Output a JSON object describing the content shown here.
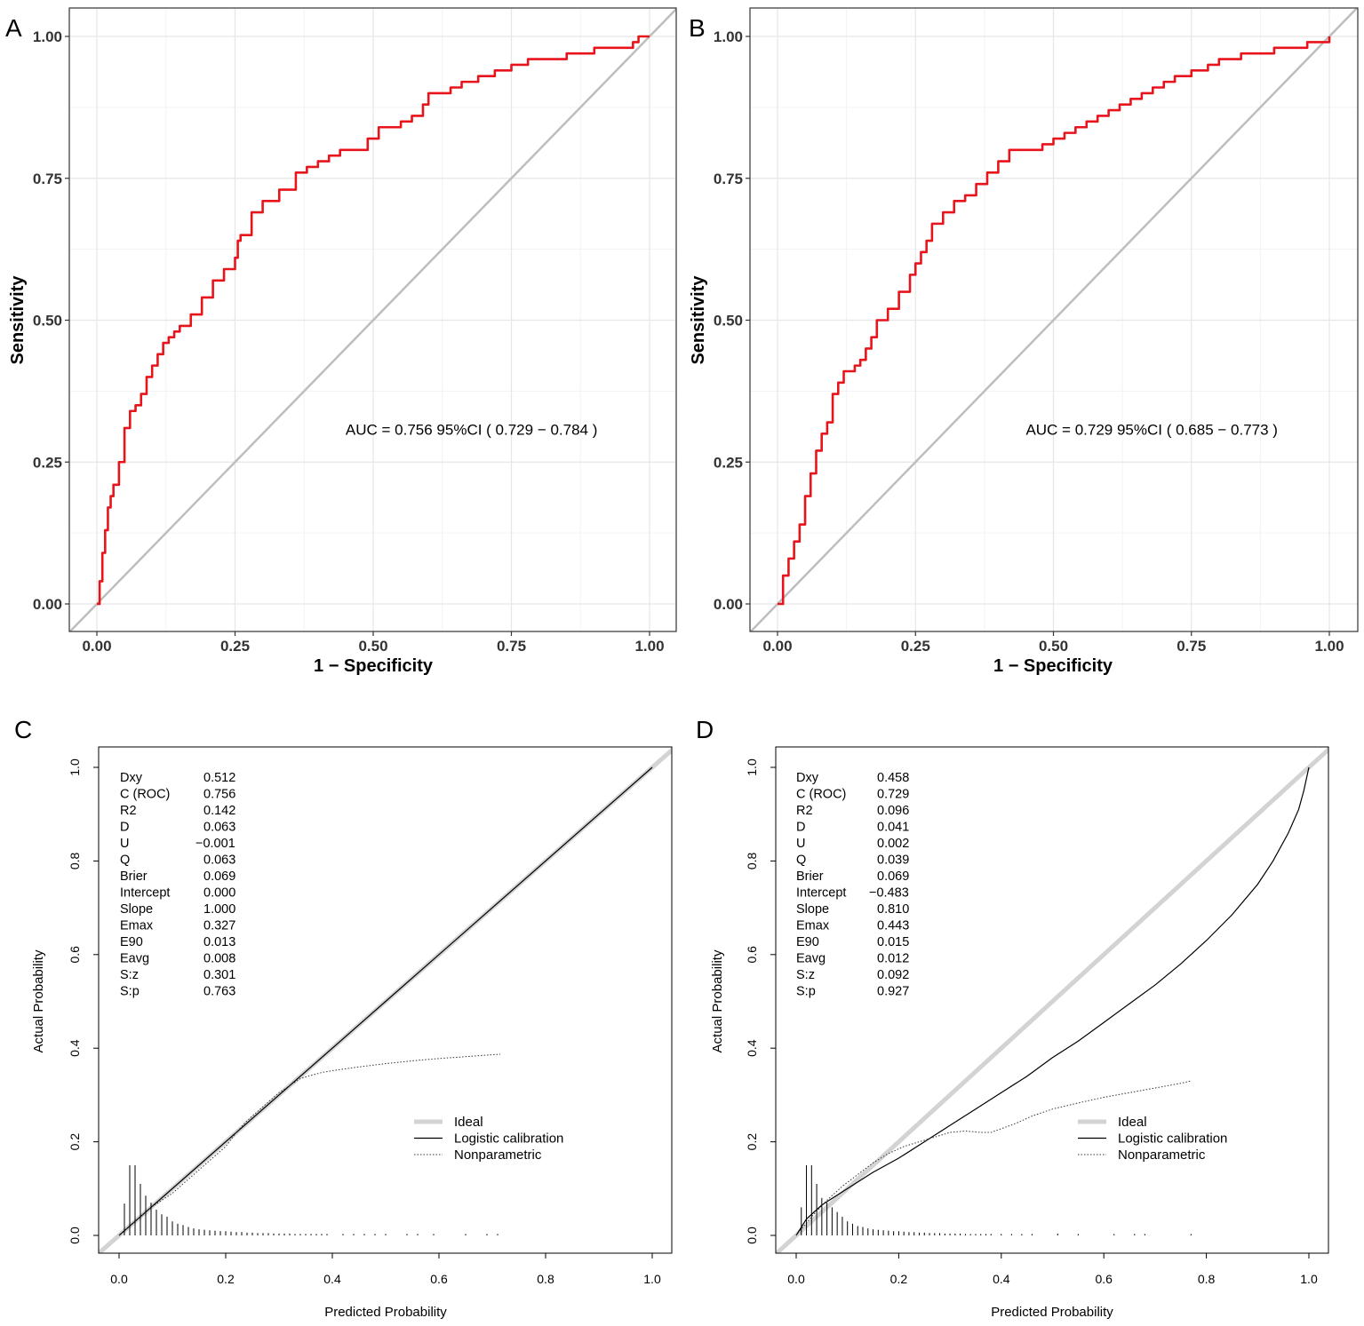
{
  "chart_data": [
    {
      "panel": "A",
      "type": "line",
      "xlabel": "1 − Specificity",
      "ylabel": "Sensitivity",
      "xlim": [
        0,
        1
      ],
      "ylim": [
        0,
        1
      ],
      "xticks": [
        "0.00",
        "0.25",
        "0.50",
        "0.75",
        "1.00"
      ],
      "yticks": [
        "0.00",
        "0.25",
        "0.50",
        "0.75",
        "1.00"
      ],
      "grid": true,
      "annotation": "AUC = 0.756 95%CI ( 0.729 − 0.784 )",
      "colors": {
        "curve": "#e8141b",
        "reference": "#bebebe"
      },
      "series": [
        {
          "x": [
            0.0,
            0.005,
            0.01,
            0.015,
            0.02,
            0.025,
            0.03,
            0.04,
            0.05,
            0.06,
            0.07,
            0.08,
            0.09,
            0.1,
            0.11,
            0.12,
            0.13,
            0.14,
            0.15,
            0.17,
            0.19,
            0.21,
            0.23,
            0.25,
            0.255,
            0.26,
            0.28,
            0.3,
            0.33,
            0.36,
            0.38,
            0.4,
            0.42,
            0.44,
            0.47,
            0.49,
            0.51,
            0.53,
            0.55,
            0.57,
            0.59,
            0.6,
            0.62,
            0.64,
            0.66,
            0.69,
            0.72,
            0.75,
            0.78,
            0.8,
            0.85,
            0.87,
            0.9,
            0.93,
            0.95,
            0.97,
            0.98,
            1.0
          ],
          "y": [
            0.0,
            0.04,
            0.09,
            0.13,
            0.17,
            0.19,
            0.21,
            0.25,
            0.31,
            0.34,
            0.35,
            0.37,
            0.4,
            0.42,
            0.44,
            0.46,
            0.47,
            0.48,
            0.49,
            0.51,
            0.54,
            0.57,
            0.59,
            0.61,
            0.64,
            0.65,
            0.69,
            0.71,
            0.73,
            0.76,
            0.77,
            0.78,
            0.79,
            0.8,
            0.8,
            0.82,
            0.84,
            0.84,
            0.85,
            0.86,
            0.88,
            0.9,
            0.9,
            0.91,
            0.92,
            0.93,
            0.94,
            0.95,
            0.96,
            0.96,
            0.97,
            0.97,
            0.98,
            0.98,
            0.98,
            0.99,
            1.0,
            1.0
          ]
        }
      ]
    },
    {
      "panel": "B",
      "type": "line",
      "xlabel": "1 − Specificity",
      "ylabel": "Sensitivity",
      "xlim": [
        0,
        1
      ],
      "ylim": [
        0,
        1
      ],
      "xticks": [
        "0.00",
        "0.25",
        "0.50",
        "0.75",
        "1.00"
      ],
      "yticks": [
        "0.00",
        "0.25",
        "0.50",
        "0.75",
        "1.00"
      ],
      "grid": true,
      "annotation": "AUC = 0.729 95%CI ( 0.685 − 0.773 )",
      "colors": {
        "curve": "#e8141b",
        "reference": "#bebebe"
      },
      "series": [
        {
          "x": [
            0.0,
            0.01,
            0.02,
            0.03,
            0.04,
            0.05,
            0.06,
            0.07,
            0.08,
            0.09,
            0.1,
            0.11,
            0.12,
            0.14,
            0.15,
            0.16,
            0.17,
            0.18,
            0.2,
            0.22,
            0.24,
            0.25,
            0.26,
            0.27,
            0.28,
            0.3,
            0.32,
            0.34,
            0.36,
            0.38,
            0.4,
            0.42,
            0.44,
            0.46,
            0.48,
            0.5,
            0.52,
            0.54,
            0.56,
            0.58,
            0.6,
            0.62,
            0.64,
            0.66,
            0.68,
            0.7,
            0.72,
            0.75,
            0.78,
            0.8,
            0.82,
            0.84,
            0.87,
            0.9,
            0.93,
            0.96,
            0.98,
            1.0
          ],
          "y": [
            0.0,
            0.05,
            0.08,
            0.11,
            0.14,
            0.19,
            0.23,
            0.27,
            0.3,
            0.32,
            0.37,
            0.39,
            0.41,
            0.42,
            0.43,
            0.45,
            0.47,
            0.5,
            0.52,
            0.55,
            0.58,
            0.6,
            0.62,
            0.64,
            0.67,
            0.69,
            0.71,
            0.72,
            0.74,
            0.76,
            0.78,
            0.8,
            0.8,
            0.8,
            0.81,
            0.82,
            0.83,
            0.84,
            0.85,
            0.86,
            0.87,
            0.88,
            0.89,
            0.9,
            0.91,
            0.92,
            0.93,
            0.94,
            0.95,
            0.96,
            0.96,
            0.97,
            0.97,
            0.98,
            0.98,
            0.99,
            0.99,
            1.0
          ]
        }
      ]
    },
    {
      "panel": "C",
      "type": "line",
      "xlabel": "Predicted Probability",
      "ylabel": "Actual Probability",
      "xlim": [
        0,
        1
      ],
      "ylim": [
        0,
        1
      ],
      "xticks": [
        "0.0",
        "0.2",
        "0.4",
        "0.6",
        "0.8",
        "1.0"
      ],
      "yticks": [
        "0.0",
        "0.2",
        "0.4",
        "0.6",
        "0.8",
        "1.0"
      ],
      "grid": false,
      "legend": {
        "position": "bottom-right",
        "items": [
          "Ideal",
          "Logistic calibration",
          "Nonparametric"
        ]
      },
      "stats": [
        {
          "name": "Dxy",
          "value": "0.512"
        },
        {
          "name": "C (ROC)",
          "value": "0.756"
        },
        {
          "name": "R2",
          "value": "0.142"
        },
        {
          "name": "D",
          "value": "0.063"
        },
        {
          "name": "U",
          "value": "−0.001"
        },
        {
          "name": "Q",
          "value": "0.063"
        },
        {
          "name": "Brier",
          "value": "0.069"
        },
        {
          "name": "Intercept",
          "value": "0.000"
        },
        {
          "name": "Slope",
          "value": "1.000"
        },
        {
          "name": "Emax",
          "value": "0.327"
        },
        {
          "name": "E90",
          "value": "0.013"
        },
        {
          "name": "Eavg",
          "value": "0.008"
        },
        {
          "name": "S:z",
          "value": "0.301"
        },
        {
          "name": "S:p",
          "value": "0.763"
        }
      ],
      "series": [
        {
          "name": "Ideal",
          "x": [
            -0.04,
            1.04
          ],
          "y": [
            -0.04,
            1.04
          ]
        },
        {
          "name": "Logistic calibration",
          "x": [
            0.0,
            0.5,
            1.0
          ],
          "y": [
            0.0,
            0.5,
            1.0
          ]
        },
        {
          "name": "Nonparametric",
          "x": [
            0.0,
            0.02,
            0.04,
            0.06,
            0.08,
            0.1,
            0.12,
            0.14,
            0.16,
            0.18,
            0.2,
            0.22,
            0.24,
            0.26,
            0.28,
            0.3,
            0.32,
            0.34,
            0.36,
            0.38,
            0.4,
            0.45,
            0.5,
            0.55,
            0.6,
            0.65,
            0.7,
            0.715
          ],
          "y": [
            0.0,
            0.02,
            0.04,
            0.06,
            0.075,
            0.09,
            0.11,
            0.13,
            0.15,
            0.17,
            0.19,
            0.22,
            0.245,
            0.265,
            0.285,
            0.305,
            0.32,
            0.335,
            0.342,
            0.348,
            0.352,
            0.36,
            0.367,
            0.373,
            0.378,
            0.382,
            0.386,
            0.387
          ]
        }
      ],
      "histogram": {
        "x": [
          0.01,
          0.02,
          0.03,
          0.04,
          0.05,
          0.06,
          0.07,
          0.08,
          0.09,
          0.1,
          0.11,
          0.12,
          0.13,
          0.14,
          0.15,
          0.16,
          0.17,
          0.18,
          0.19,
          0.2,
          0.21,
          0.22,
          0.23,
          0.24,
          0.25,
          0.26,
          0.27,
          0.28,
          0.29,
          0.3,
          0.31,
          0.32,
          0.33,
          0.34,
          0.35,
          0.36,
          0.37,
          0.38,
          0.39,
          0.42,
          0.44,
          0.46,
          0.48,
          0.5,
          0.54,
          0.56,
          0.59,
          0.65,
          0.69,
          0.71
        ],
        "h": [
          0.068,
          0.15,
          0.15,
          0.11,
          0.085,
          0.07,
          0.055,
          0.045,
          0.04,
          0.03,
          0.025,
          0.022,
          0.018,
          0.015,
          0.013,
          0.012,
          0.011,
          0.01,
          0.009,
          0.009,
          0.008,
          0.007,
          0.007,
          0.006,
          0.006,
          0.005,
          0.005,
          0.005,
          0.004,
          0.004,
          0.004,
          0.004,
          0.003,
          0.003,
          0.003,
          0.003,
          0.003,
          0.003,
          0.003,
          0.003,
          0.003,
          0.003,
          0.003,
          0.003,
          0.003,
          0.003,
          0.003,
          0.003,
          0.003,
          0.003
        ]
      }
    },
    {
      "panel": "D",
      "type": "line",
      "xlabel": "Predicted Probability",
      "ylabel": "Actual Probability",
      "xlim": [
        0,
        1
      ],
      "ylim": [
        0,
        1
      ],
      "xticks": [
        "0.0",
        "0.2",
        "0.4",
        "0.6",
        "0.8",
        "1.0"
      ],
      "yticks": [
        "0.0",
        "0.2",
        "0.4",
        "0.6",
        "0.8",
        "1.0"
      ],
      "grid": false,
      "legend": {
        "position": "bottom-right",
        "items": [
          "Ideal",
          "Logistic calibration",
          "Nonparametric"
        ]
      },
      "stats": [
        {
          "name": "Dxy",
          "value": "0.458"
        },
        {
          "name": "C (ROC)",
          "value": "0.729"
        },
        {
          "name": "R2",
          "value": "0.096"
        },
        {
          "name": "D",
          "value": "0.041"
        },
        {
          "name": "U",
          "value": "0.002"
        },
        {
          "name": "Q",
          "value": "0.039"
        },
        {
          "name": "Brier",
          "value": "0.069"
        },
        {
          "name": "Intercept",
          "value": "−0.483"
        },
        {
          "name": "Slope",
          "value": "0.810"
        },
        {
          "name": "Emax",
          "value": "0.443"
        },
        {
          "name": "E90",
          "value": "0.015"
        },
        {
          "name": "Eavg",
          "value": "0.012"
        },
        {
          "name": "S:z",
          "value": "0.092"
        },
        {
          "name": "S:p",
          "value": "0.927"
        }
      ],
      "series": [
        {
          "name": "Ideal",
          "x": [
            -0.04,
            1.04
          ],
          "y": [
            -0.04,
            1.04
          ]
        },
        {
          "name": "Logistic calibration",
          "x": [
            0.0,
            0.02,
            0.05,
            0.1,
            0.15,
            0.2,
            0.25,
            0.3,
            0.35,
            0.4,
            0.45,
            0.5,
            0.55,
            0.6,
            0.65,
            0.7,
            0.75,
            0.8,
            0.85,
            0.9,
            0.93,
            0.96,
            0.98,
            0.99,
            1.0
          ],
          "y": [
            0.0,
            0.035,
            0.065,
            0.1,
            0.135,
            0.165,
            0.2,
            0.235,
            0.27,
            0.305,
            0.34,
            0.38,
            0.415,
            0.455,
            0.495,
            0.535,
            0.58,
            0.63,
            0.685,
            0.75,
            0.8,
            0.86,
            0.91,
            0.95,
            1.0
          ]
        },
        {
          "name": "Nonparametric",
          "x": [
            0.0,
            0.03,
            0.06,
            0.09,
            0.12,
            0.15,
            0.18,
            0.21,
            0.24,
            0.27,
            0.3,
            0.33,
            0.36,
            0.38,
            0.4,
            0.43,
            0.46,
            0.5,
            0.55,
            0.6,
            0.65,
            0.7,
            0.75,
            0.77
          ],
          "y": [
            0.0,
            0.04,
            0.075,
            0.105,
            0.13,
            0.155,
            0.175,
            0.19,
            0.2,
            0.21,
            0.22,
            0.223,
            0.22,
            0.22,
            0.228,
            0.24,
            0.255,
            0.27,
            0.283,
            0.295,
            0.305,
            0.315,
            0.325,
            0.33
          ]
        }
      ],
      "histogram": {
        "x": [
          0.01,
          0.02,
          0.03,
          0.04,
          0.05,
          0.06,
          0.07,
          0.08,
          0.09,
          0.1,
          0.11,
          0.12,
          0.13,
          0.14,
          0.15,
          0.16,
          0.17,
          0.18,
          0.19,
          0.2,
          0.21,
          0.22,
          0.23,
          0.24,
          0.25,
          0.26,
          0.27,
          0.28,
          0.29,
          0.3,
          0.31,
          0.32,
          0.33,
          0.34,
          0.35,
          0.36,
          0.37,
          0.38,
          0.4,
          0.42,
          0.44,
          0.46,
          0.51,
          0.55,
          0.62,
          0.66,
          0.68,
          0.77
        ],
        "h": [
          0.06,
          0.15,
          0.15,
          0.11,
          0.08,
          0.07,
          0.06,
          0.05,
          0.04,
          0.03,
          0.025,
          0.02,
          0.018,
          0.015,
          0.013,
          0.012,
          0.011,
          0.01,
          0.009,
          0.009,
          0.008,
          0.007,
          0.007,
          0.006,
          0.006,
          0.005,
          0.005,
          0.005,
          0.004,
          0.004,
          0.004,
          0.004,
          0.003,
          0.003,
          0.003,
          0.003,
          0.003,
          0.003,
          0.003,
          0.003,
          0.003,
          0.003,
          0.004,
          0.003,
          0.003,
          0.003,
          0.003,
          0.003
        ]
      }
    }
  ]
}
